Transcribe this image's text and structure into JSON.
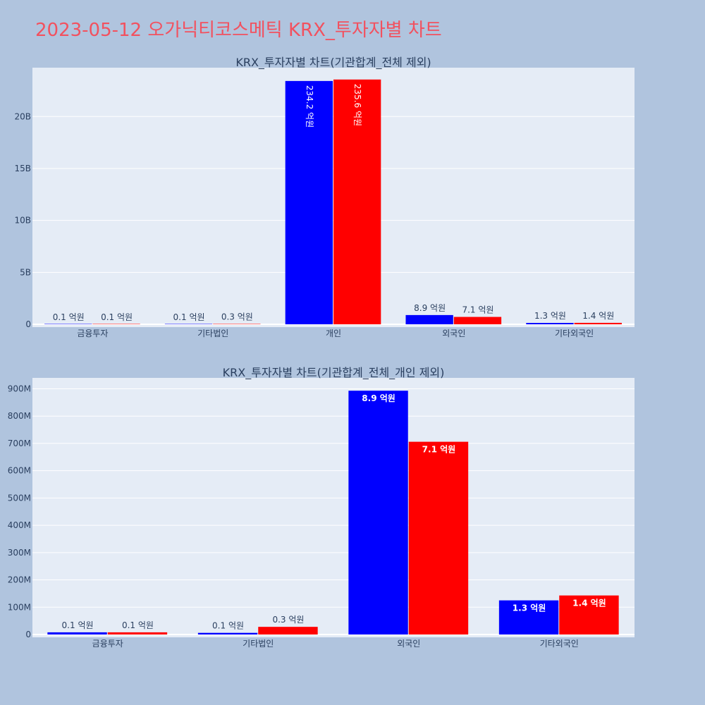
{
  "title": "2023-05-12 오가닉티코스메틱 KRX_투자자별 차트",
  "colors": {
    "buy": "#0000ff",
    "sell": "#ff0000",
    "title": "#f2515f"
  },
  "chart_data": [
    {
      "type": "bar",
      "title": "KRX_투자자별 차트(기관합계_전체 제외)",
      "categories": [
        "금융투자",
        "기타법인",
        "개인",
        "외국인",
        "기타외국인"
      ],
      "series": [
        {
          "values": [
            10000000,
            10000000,
            23420000000,
            890000000,
            130000000
          ],
          "labels": [
            "0.1 억원",
            "0.1 억원",
            "234.2 억원",
            "8.9 억원",
            "1.3 억원"
          ]
        },
        {
          "values": [
            10000000,
            30000000,
            23560000000,
            710000000,
            140000000
          ],
          "labels": [
            "0.1 억원",
            "0.3 억원",
            "235.6 억원",
            "7.1 억원",
            "1.4 억원"
          ]
        }
      ],
      "yticks": [
        0,
        5000000000,
        10000000000,
        15000000000,
        20000000000
      ],
      "ytick_labels": [
        "0",
        "5B",
        "10B",
        "15B",
        "20B"
      ],
      "ylim": [
        0,
        24700000000
      ]
    },
    {
      "type": "bar",
      "title": "KRX_투자자별 차트(기관합계_전체_개인 제외)",
      "categories": [
        "금융투자",
        "기타법인",
        "외국인",
        "기타외국인"
      ],
      "series": [
        {
          "values": [
            8000000,
            6000000,
            893000000,
            125000000
          ],
          "labels": [
            "0.1 억원",
            "0.1 억원",
            "8.9 억원",
            "1.3 억원"
          ]
        },
        {
          "values": [
            8000000,
            28000000,
            706000000,
            143000000
          ],
          "labels": [
            "0.1 억원",
            "0.3 억원",
            "7.1 억원",
            "1.4 억원"
          ]
        }
      ],
      "yticks": [
        0,
        100000000,
        200000000,
        300000000,
        400000000,
        500000000,
        600000000,
        700000000,
        800000000,
        900000000
      ],
      "ytick_labels": [
        "0",
        "100M",
        "200M",
        "300M",
        "400M",
        "500M",
        "600M",
        "700M",
        "800M",
        "900M"
      ],
      "ylim": [
        0,
        940000000
      ]
    }
  ]
}
